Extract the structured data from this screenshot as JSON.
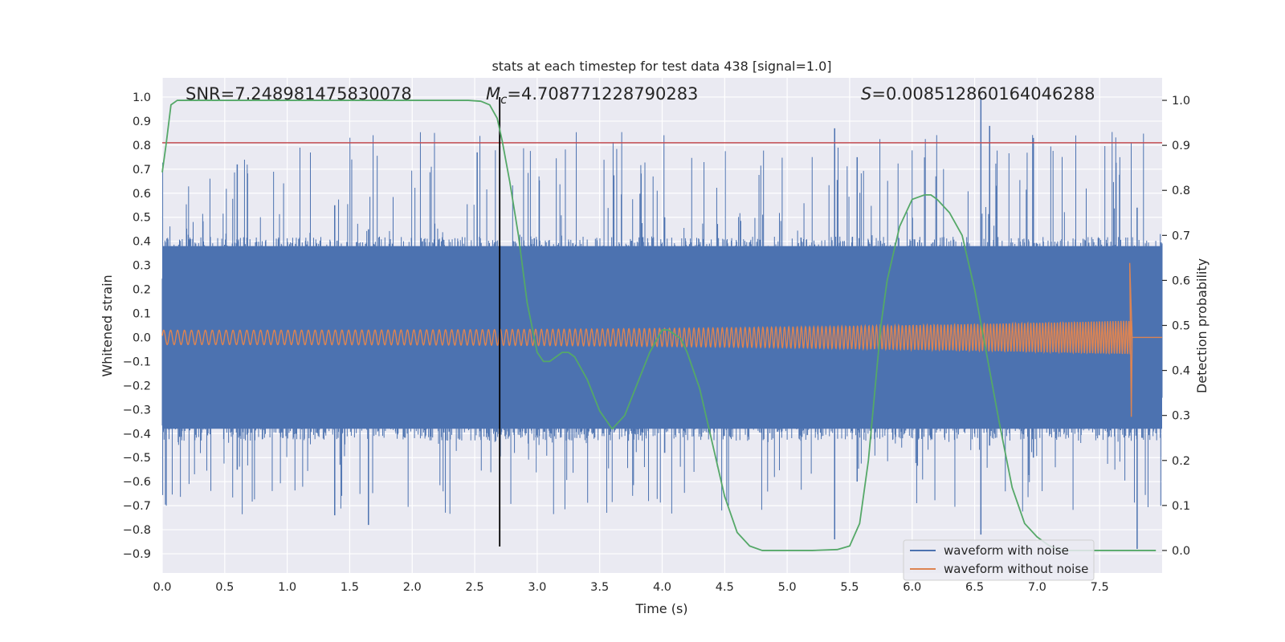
{
  "chart_data": {
    "type": "line",
    "title": "stats at each timestep for test data 438 [signal=1.0]",
    "xlabel": "Time (s)",
    "ylabel_left": "Whitened strain",
    "ylabel_right": "Detection probability",
    "xlim": [
      0.0,
      8.0
    ],
    "ylim_left": [
      -0.98,
      1.08
    ],
    "ylim_right": [
      -0.05,
      1.05
    ],
    "xticks": [
      0.0,
      0.5,
      1.0,
      1.5,
      2.0,
      2.5,
      3.0,
      3.5,
      4.0,
      4.5,
      5.0,
      5.5,
      6.0,
      6.5,
      7.0,
      7.5
    ],
    "xtick_labels": [
      "0.0",
      "0.5",
      "1.0",
      "1.5",
      "2.0",
      "2.5",
      "3.0",
      "3.5",
      "4.0",
      "4.5",
      "5.0",
      "5.5",
      "6.0",
      "6.5",
      "7.0",
      "7.5"
    ],
    "yticks_left": [
      1.0,
      0.9,
      0.8,
      0.7,
      0.6,
      0.5,
      0.4,
      0.3,
      0.2,
      0.1,
      0.0,
      -0.1,
      -0.2,
      -0.3,
      -0.4,
      -0.5,
      -0.6,
      -0.7,
      -0.8,
      -0.9
    ],
    "ytick_labels_left": [
      "1.0",
      "0.9",
      "0.8",
      "0.7",
      "0.6",
      "0.5",
      "0.4",
      "0.3",
      "0.2",
      "0.1",
      "0.0",
      "−0.1",
      "−0.2",
      "−0.3",
      "−0.4",
      "−0.5",
      "−0.6",
      "−0.7",
      "−0.8",
      "−0.9"
    ],
    "yticks_right": [
      1.0,
      0.9,
      0.8,
      0.7,
      0.6,
      0.5,
      0.4,
      0.3,
      0.2,
      0.1,
      0.0
    ],
    "ytick_labels_right": [
      "1.0",
      "0.9",
      "0.8",
      "0.7",
      "0.6",
      "0.5",
      "0.4",
      "0.3",
      "0.2",
      "0.1",
      "0.0"
    ],
    "annotations": {
      "snr": "SNR=7.248981475830078",
      "mc_symbol": "M",
      "mc_subscript": "c",
      "mc_value": "=4.708771228790283",
      "s_symbol": "S",
      "s_value": "=0.008512860164046288"
    },
    "threshold_line": {
      "axis": "left",
      "y": 0.81,
      "color": "#c44e52"
    },
    "marker_line": {
      "x": 2.7,
      "y_range": [
        -0.87,
        1.0
      ],
      "color": "#000000"
    },
    "series": [
      {
        "name": "waveform with noise",
        "axis": "left",
        "color": "#4c72b0",
        "envelope": {
          "typical_max": 0.42,
          "typical_min": -0.43,
          "peak_max": 1.0,
          "peak_min": -0.84,
          "duration": 8.0
        }
      },
      {
        "name": "waveform without noise",
        "axis": "left",
        "color": "#dd8452",
        "chirp": {
          "start_amp": 0.03,
          "end_amp": 0.07,
          "merger_time": 7.76,
          "merger_peak_max": 0.31,
          "merger_peak_min": -0.33
        }
      },
      {
        "name": "detection probability",
        "axis": "right",
        "color": "#55a868",
        "x": [
          0.0,
          0.03,
          0.07,
          0.12,
          0.2,
          0.5,
          1.0,
          1.5,
          2.0,
          2.45,
          2.55,
          2.62,
          2.68,
          2.72,
          2.78,
          2.85,
          2.92,
          3.0,
          3.05,
          3.1,
          3.15,
          3.2,
          3.25,
          3.3,
          3.4,
          3.5,
          3.6,
          3.7,
          3.8,
          3.9,
          4.0,
          4.05,
          4.1,
          4.15,
          4.2,
          4.3,
          4.4,
          4.5,
          4.6,
          4.7,
          4.8,
          5.0,
          5.2,
          5.4,
          5.5,
          5.58,
          5.65,
          5.7,
          5.75,
          5.8,
          5.9,
          6.0,
          6.1,
          6.15,
          6.2,
          6.3,
          6.4,
          6.5,
          6.6,
          6.7,
          6.8,
          6.9,
          7.0,
          7.1,
          7.2,
          7.5,
          7.8,
          7.95
        ],
        "y": [
          0.84,
          0.9,
          0.99,
          1.0,
          1.0,
          1.0,
          1.0,
          1.0,
          1.0,
          1.0,
          0.998,
          0.99,
          0.96,
          0.91,
          0.82,
          0.7,
          0.55,
          0.44,
          0.42,
          0.42,
          0.43,
          0.44,
          0.44,
          0.43,
          0.38,
          0.31,
          0.27,
          0.3,
          0.37,
          0.44,
          0.49,
          0.49,
          0.48,
          0.47,
          0.44,
          0.36,
          0.24,
          0.12,
          0.04,
          0.01,
          0.0,
          0.0,
          0.0,
          0.002,
          0.01,
          0.06,
          0.2,
          0.35,
          0.5,
          0.6,
          0.72,
          0.78,
          0.79,
          0.79,
          0.78,
          0.75,
          0.7,
          0.58,
          0.43,
          0.28,
          0.14,
          0.06,
          0.03,
          0.01,
          0.0,
          0.0,
          0.0,
          0.0
        ]
      }
    ],
    "legend": {
      "location": "lower-right",
      "entries": [
        {
          "label": "waveform with noise",
          "color": "#4c72b0"
        },
        {
          "label": "waveform without noise",
          "color": "#dd8452"
        }
      ]
    }
  }
}
